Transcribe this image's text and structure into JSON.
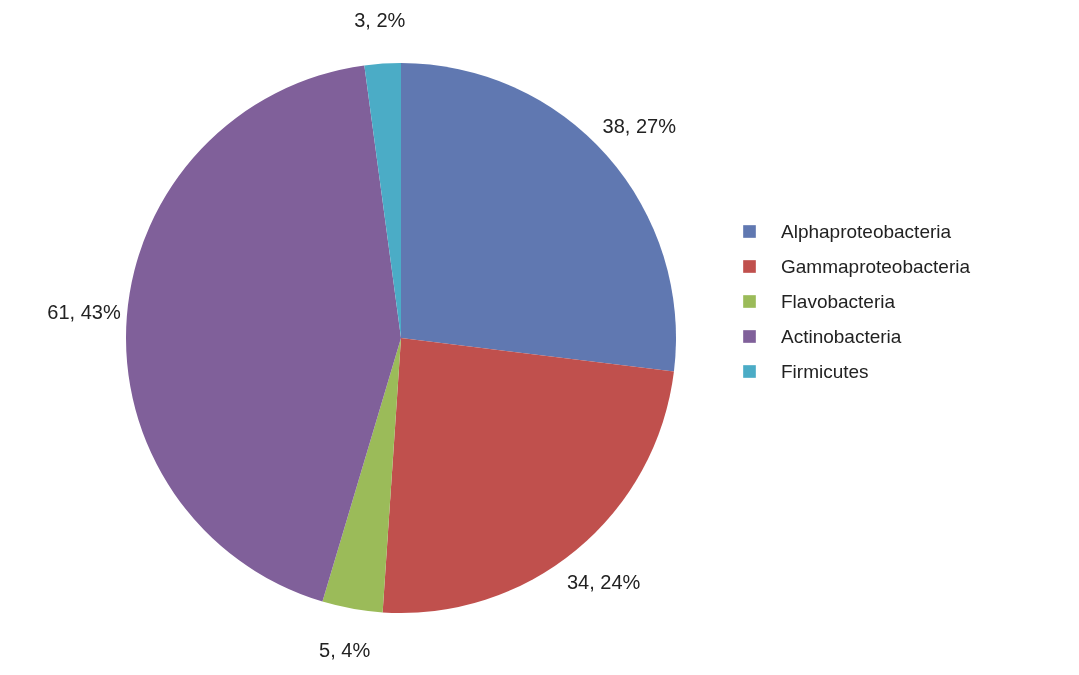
{
  "chart_data": {
    "type": "pie",
    "categories": [
      "Alphaproteobacteria",
      "Gammaproteobacteria",
      "Flavobacteria",
      "Actinobacteria",
      "Firmicutes"
    ],
    "values": [
      38,
      34,
      5,
      61,
      3
    ],
    "colors": [
      "#6078b1",
      "#c0504d",
      "#9bbb59",
      "#80609a",
      "#4bacc6"
    ],
    "value_labels": [
      "38, 27%",
      "34, 24%",
      "5, 4%",
      "61, 43%",
      "3, 2%"
    ],
    "legend": "right"
  }
}
